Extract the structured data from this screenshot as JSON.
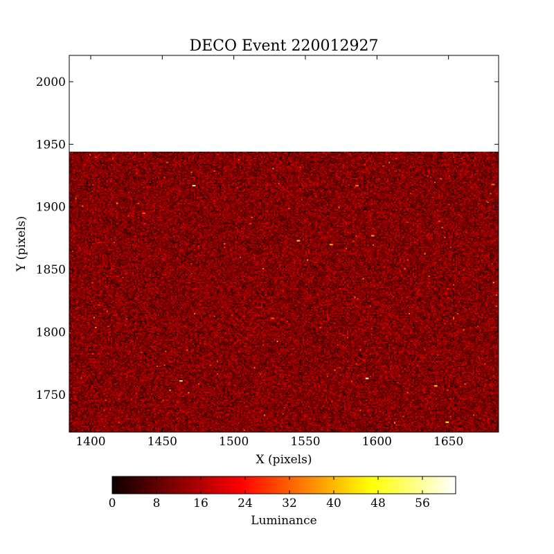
{
  "chart_data": {
    "type": "heatmap",
    "title": "DECO Event 220012927",
    "xlabel": "X (pixels)",
    "ylabel": "Y (pixels)",
    "xlim": [
      1385,
      1685
    ],
    "ylim": [
      1720,
      2021
    ],
    "image_extent": {
      "x": [
        1385,
        1685
      ],
      "y": [
        1720,
        1944
      ]
    },
    "x_ticks": [
      1400,
      1450,
      1500,
      1550,
      1600,
      1650
    ],
    "x_tick_labels": [
      "1400",
      "1450",
      "1500",
      "1550",
      "1600",
      "1650"
    ],
    "y_ticks": [
      1750,
      1800,
      1850,
      1900,
      1950,
      2000
    ],
    "y_tick_labels": [
      "1750",
      "1800",
      "1850",
      "1900",
      "1950",
      "2000"
    ],
    "colormap": "hot",
    "colorbar": {
      "label": "Luminance",
      "min": 0,
      "max": 62,
      "ticks": [
        0,
        8,
        16,
        24,
        32,
        40,
        48,
        56
      ],
      "tick_labels": [
        "0",
        "8",
        "16",
        "24",
        "32",
        "40",
        "48",
        "56"
      ]
    },
    "luminance_background": {
      "typical": 10,
      "range": [
        0,
        20
      ]
    },
    "bright_spots": [
      {
        "x": 1472,
        "y": 1917,
        "value": 50
      },
      {
        "x": 1593,
        "y": 1763,
        "value": 56
      },
      {
        "x": 1463,
        "y": 1761,
        "value": 44
      },
      {
        "x": 1545,
        "y": 1873,
        "value": 40
      },
      {
        "x": 1568,
        "y": 1870,
        "value": 38
      },
      {
        "x": 1649,
        "y": 1728,
        "value": 46
      },
      {
        "x": 1586,
        "y": 1917,
        "value": 34
      },
      {
        "x": 1641,
        "y": 1757,
        "value": 42
      },
      {
        "x": 1597,
        "y": 1877,
        "value": 36
      },
      {
        "x": 1527,
        "y": 1811,
        "value": 30
      },
      {
        "x": 1681,
        "y": 1918,
        "value": 32
      },
      {
        "x": 1437,
        "y": 1895,
        "value": 30
      }
    ],
    "grid": false,
    "legend": "colorbar-bottom"
  }
}
